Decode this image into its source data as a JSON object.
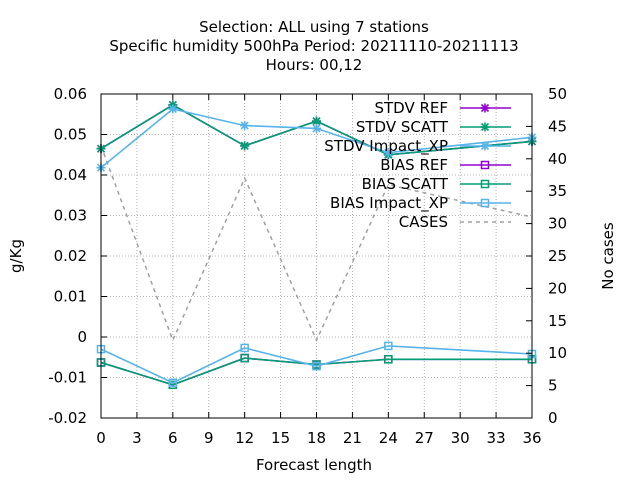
{
  "chart_data": {
    "type": "line",
    "title_lines": [
      "Selection: ALL using     7 stations",
      "Specific humidity 500hPa   Period: 20211110-20211113",
      "Hours:  00,12"
    ],
    "xlabel": "Forecast length",
    "ylabel": "g/Kg",
    "y2label": "No cases",
    "xlim": [
      0,
      36
    ],
    "ylim": [
      -0.02,
      0.06
    ],
    "y2lim": [
      0,
      50
    ],
    "xticks": [
      0,
      3,
      6,
      9,
      12,
      15,
      18,
      21,
      24,
      27,
      30,
      33,
      36
    ],
    "yticks": [
      -0.02,
      -0.01,
      0,
      0.01,
      0.02,
      0.03,
      0.04,
      0.05,
      0.06
    ],
    "ytick_labels": [
      "-0.02",
      "-0.01",
      "0",
      "0.01",
      "0.02",
      "0.03",
      "0.04",
      "0.05",
      "0.06"
    ],
    "y2ticks": [
      0,
      5,
      10,
      15,
      20,
      25,
      30,
      35,
      40,
      45,
      50
    ],
    "grid": true,
    "legend_position": "top-right",
    "series": [
      {
        "name": "STDV REF",
        "axis": "y1",
        "color": "#9400d3",
        "marker": "x",
        "dash": false,
        "x": [
          0,
          6,
          12,
          18,
          24,
          36
        ],
        "values": [
          0.0465,
          0.0573,
          0.0472,
          0.0533,
          0.045,
          0.0483
        ]
      },
      {
        "name": "STDV SCATT",
        "axis": "y1",
        "color": "#009e73",
        "marker": "x",
        "dash": false,
        "x": [
          0,
          6,
          12,
          18,
          24,
          36
        ],
        "values": [
          0.0465,
          0.0573,
          0.0472,
          0.0533,
          0.045,
          0.0483
        ]
      },
      {
        "name": "STDV Impact_XP",
        "axis": "y1",
        "color": "#56b4e9",
        "marker": "x",
        "dash": false,
        "x": [
          0,
          6,
          12,
          18,
          24,
          36
        ],
        "values": [
          0.0418,
          0.0563,
          0.0522,
          0.0515,
          0.0455,
          0.0493
        ]
      },
      {
        "name": "BIAS REF",
        "axis": "y1",
        "color": "#9400d3",
        "marker": "square",
        "dash": false,
        "x": [
          0,
          6,
          12,
          18,
          24,
          36
        ],
        "values": [
          -0.0063,
          -0.0118,
          -0.0052,
          -0.0068,
          -0.0055,
          -0.0055
        ]
      },
      {
        "name": "BIAS SCATT",
        "axis": "y1",
        "color": "#009e73",
        "marker": "square",
        "dash": false,
        "x": [
          0,
          6,
          12,
          18,
          24,
          36
        ],
        "values": [
          -0.0063,
          -0.0118,
          -0.0052,
          -0.0068,
          -0.0055,
          -0.0055
        ]
      },
      {
        "name": "BIAS Impact_XP",
        "axis": "y1",
        "color": "#56b4e9",
        "marker": "square",
        "dash": false,
        "x": [
          0,
          6,
          12,
          18,
          24,
          36
        ],
        "values": [
          -0.003,
          -0.0113,
          -0.0027,
          -0.0072,
          -0.0022,
          -0.0042
        ]
      },
      {
        "name": "CASES",
        "axis": "y2",
        "color": "#a0a0a0",
        "marker": "none",
        "dash": true,
        "x": [
          0,
          6,
          12,
          18,
          24,
          36
        ],
        "values": [
          42,
          12,
          37,
          12,
          36,
          31
        ]
      }
    ]
  }
}
